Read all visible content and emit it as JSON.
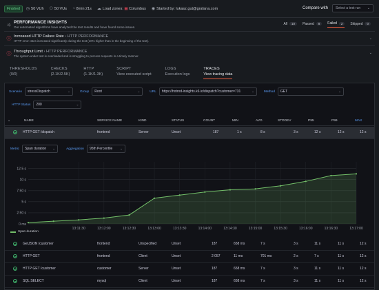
{
  "topbar": {
    "status": "Finished",
    "vuh": "50 VUh",
    "vus": "50 VUs",
    "duration": "8min 21s",
    "load_zones_label": "Load zones:",
    "load_zone": "Columbus",
    "started_by": "Started by: lukasz.gut@grafana.com",
    "compare_label": "Compare with",
    "compare_placeholder": "Select a test run"
  },
  "insights": {
    "title": "PERFORMANCE INSIGHTS",
    "subtitle": "Our automated algorithms have analyzed the test results and have found some issues.",
    "filters": [
      {
        "label": "All",
        "count": "10"
      },
      {
        "label": "Passed",
        "count": "8"
      },
      {
        "label": "Failed",
        "count": "2"
      },
      {
        "label": "Skipped",
        "count": "0"
      }
    ],
    "items": [
      {
        "title": "Increased HTTP Failure Rate",
        "category": "HTTP PERFORMANCE",
        "desc": "HTTP error rates increased significantly during the test (10% higher than in the beginning of the test)."
      },
      {
        "title": "Throughput Limit",
        "category": "HTTP PERFORMANCE",
        "desc": "The system under test is overloaded and is struggling to process requests in a timely manner."
      }
    ]
  },
  "tabs": [
    {
      "label": "THRESHOLDS",
      "sub": "(0/0)"
    },
    {
      "label": "CHECKS",
      "sub": "(2.1K/2.5K)"
    },
    {
      "label": "HTTP",
      "sub": "(1.1K/1.3K)"
    },
    {
      "label": "SCRIPT",
      "sub": "View executed script"
    },
    {
      "label": "LOGS",
      "sub": "Execution logs"
    },
    {
      "label": "TRACES",
      "sub": "View tracing data"
    }
  ],
  "filters": {
    "scenario_label": "Scenario",
    "scenario_value": "stressDispatch",
    "group_label": "Group",
    "group_value": "Root",
    "url_label": "URL",
    "url_value": "https://hotrod-insights.k6.io/dispatch?customer=731",
    "method_label": "Method",
    "method_value": "GET",
    "status_label": "HTTP Status",
    "status_value": "200"
  },
  "table": {
    "headers": [
      "NAME",
      "SERVICE NAME",
      "KIND",
      "STATUS",
      "COUNT",
      "MIN",
      "AVG",
      "STDDEV",
      "P95",
      "P99",
      "MAX"
    ],
    "selected_row": [
      "HTTP GET /dispatch",
      "frontend",
      "Server",
      "Unset",
      "187",
      "1 s",
      "8 s",
      "3 s",
      "12 s",
      "12 s",
      "12 s"
    ],
    "rows": [
      [
        "GetJSON /customer",
        "frontend",
        "Unspecified",
        "Unset",
        "187",
        "658 ms",
        "7 s",
        "3 s",
        "11 s",
        "11 s",
        "12 s"
      ],
      [
        "HTTP GET",
        "frontend",
        "Client",
        "Unset",
        "2 057",
        "11 ms",
        "701 ms",
        "2 s",
        "7 s",
        "11 s",
        "12 s"
      ],
      [
        "HTTP GET /customer",
        "customer",
        "Server",
        "Unset",
        "187",
        "658 ms",
        "7 s",
        "3 s",
        "11 s",
        "11 s",
        "12 s"
      ],
      [
        "SQL SELECT",
        "mysql",
        "Client",
        "Unset",
        "187",
        "658 ms",
        "7 s",
        "3 s",
        "11 s",
        "11 s",
        "12 s"
      ]
    ]
  },
  "chart_controls": {
    "metric_label": "Metric",
    "metric_value": "Span duration",
    "aggregation_label": "Aggregation",
    "aggregation_value": "95th Percentile"
  },
  "chart_data": {
    "type": "area",
    "x": [
      "13:10:30",
      "13:11:00",
      "13:11:30",
      "13:12:00",
      "13:12:30",
      "13:13:00",
      "13:13:30",
      "13:14:00",
      "13:14:30",
      "13:15:00",
      "13:15:30",
      "13:16:00",
      "13:16:30",
      "13:17:00"
    ],
    "x_ticks": [
      "13:11:30",
      "13:12:00",
      "13:12:30",
      "13:13:00",
      "13:13:30",
      "13:14:00",
      "13:14:30",
      "13:15:00",
      "13:15:30",
      "13:16:00",
      "13:16:30",
      "13:17:00"
    ],
    "y_ticks": [
      "0 ms",
      "2.50 s",
      "5 s",
      "7.50 s",
      "10 s",
      "12.5 s"
    ],
    "ylim": [
      0,
      14
    ],
    "series": [
      {
        "name": "Span duration",
        "color": "#73bf69",
        "values": [
          0.3,
          0.6,
          0.9,
          1.3,
          2.0,
          5.8,
          6.5,
          7.2,
          7.7,
          7.9,
          8.6,
          9.6,
          10.9,
          11.3
        ]
      }
    ],
    "legend": "bottom-left"
  }
}
